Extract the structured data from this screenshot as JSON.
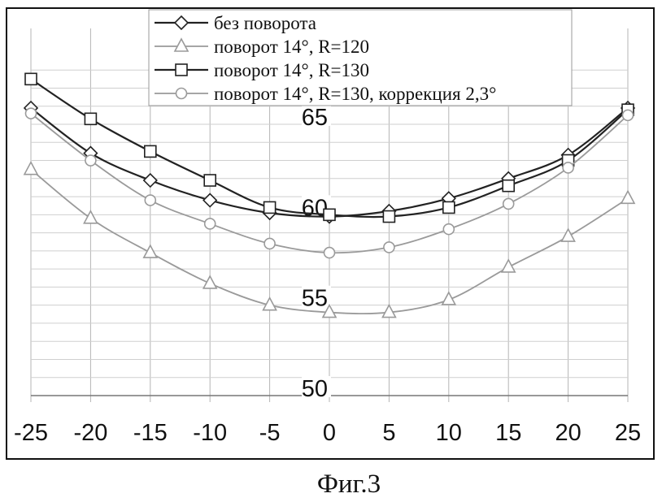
{
  "chart_data": {
    "type": "line",
    "title": "",
    "xlabel": "",
    "ylabel": "",
    "x": [
      -25,
      -20,
      -15,
      -10,
      -5,
      0,
      5,
      10,
      15,
      20,
      25
    ],
    "xlim": [
      -25,
      25
    ],
    "ylim": [
      50,
      67
    ],
    "x_ticks": [
      "-25",
      "-20",
      "-15",
      "-10",
      "-5",
      "0",
      "5",
      "10",
      "15",
      "20",
      "25"
    ],
    "y_ticks": [
      "50",
      "55",
      "60",
      "65"
    ],
    "grid": true,
    "legend_position": "top",
    "series": [
      {
        "name": "без поворота",
        "marker": "diamond",
        "color": "#222222",
        "values": [
          65.9,
          63.4,
          61.9,
          60.8,
          60.1,
          59.9,
          60.2,
          60.9,
          62.0,
          63.3,
          65.9
        ]
      },
      {
        "name": "поворот 14°, R=120",
        "marker": "triangle",
        "color": "#9a9a9a",
        "values": [
          62.5,
          59.8,
          57.9,
          56.2,
          55.0,
          54.6,
          54.6,
          55.3,
          57.1,
          58.8,
          60.9
        ]
      },
      {
        "name": "поворот 14°, R=130",
        "marker": "square",
        "color": "#222222",
        "values": [
          67.5,
          65.3,
          63.5,
          61.9,
          60.4,
          60.0,
          59.9,
          60.4,
          61.6,
          63.0,
          65.8
        ]
      },
      {
        "name": "поворот 14°, R=130, коррекция 2,3°",
        "marker": "circle",
        "color": "#9a9a9a",
        "values": [
          65.6,
          63.0,
          60.8,
          59.5,
          58.4,
          57.9,
          58.2,
          59.2,
          60.6,
          62.6,
          65.5
        ]
      }
    ]
  },
  "caption": "Фиг.3"
}
